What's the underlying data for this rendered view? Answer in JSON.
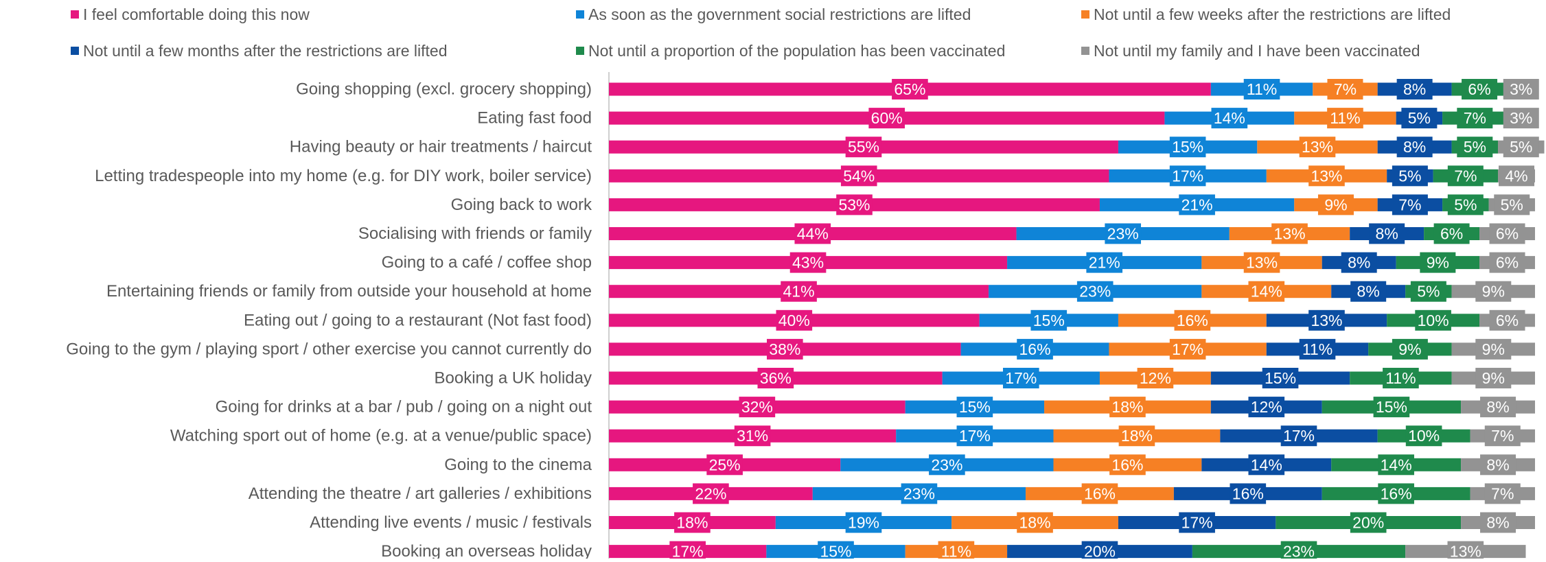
{
  "chart_data": {
    "type": "bar",
    "orientation": "horizontal",
    "stacked": true,
    "legend_position": "top",
    "grid": false,
    "xlim": [
      0,
      100
    ],
    "categories": [
      "Going shopping (excl. grocery shopping)",
      "Eating fast food",
      "Having beauty or hair treatments / haircut",
      "Letting tradespeople into my home (e.g. for DIY work, boiler service)",
      "Going back to work",
      "Socialising with friends or family",
      "Going to a café / coffee shop",
      "Entertaining friends or family from outside your household at home",
      "Eating out / going to a restaurant (Not fast food)",
      "Going to the gym / playing sport / other exercise you cannot currently do",
      "Booking a UK holiday",
      "Going for drinks at a bar / pub / going on a night out",
      "Watching sport out of home (e.g. at a venue/public space)",
      "Going to the cinema",
      "Attending the theatre / art galleries / exhibitions",
      "Attending live events / music / festivals",
      "Booking an overseas holiday"
    ],
    "series": [
      {
        "name": "I feel comfortable doing this now",
        "color": "#e6177f",
        "values": [
          65,
          60,
          55,
          54,
          53,
          44,
          43,
          41,
          40,
          38,
          36,
          32,
          31,
          25,
          22,
          18,
          17
        ]
      },
      {
        "name": "As soon as the government social restrictions are lifted",
        "color": "#0f84d7",
        "values": [
          11,
          14,
          15,
          17,
          21,
          23,
          21,
          23,
          15,
          16,
          17,
          15,
          17,
          23,
          23,
          19,
          15
        ]
      },
      {
        "name": "Not until a few weeks after the restrictions are lifted",
        "color": "#f68024",
        "values": [
          7,
          11,
          13,
          13,
          9,
          13,
          13,
          14,
          16,
          17,
          12,
          18,
          18,
          16,
          16,
          18,
          11
        ]
      },
      {
        "name": "Not until a few months after the restrictions are lifted",
        "color": "#0b4ea2",
        "values": [
          8,
          5,
          8,
          5,
          7,
          8,
          8,
          8,
          13,
          11,
          15,
          12,
          17,
          14,
          16,
          17,
          20
        ]
      },
      {
        "name": "Not until a proportion of the population has been vaccinated",
        "color": "#1f8a4c",
        "values": [
          6,
          7,
          5,
          7,
          5,
          6,
          9,
          5,
          10,
          9,
          11,
          15,
          10,
          14,
          16,
          20,
          23
        ]
      },
      {
        "name": "Not until my family and I have been vaccinated",
        "color": "#939393",
        "values": [
          3,
          3,
          5,
          4,
          5,
          6,
          6,
          9,
          6,
          9,
          9,
          8,
          7,
          8,
          7,
          8,
          13
        ]
      }
    ],
    "value_suffix": "%"
  }
}
